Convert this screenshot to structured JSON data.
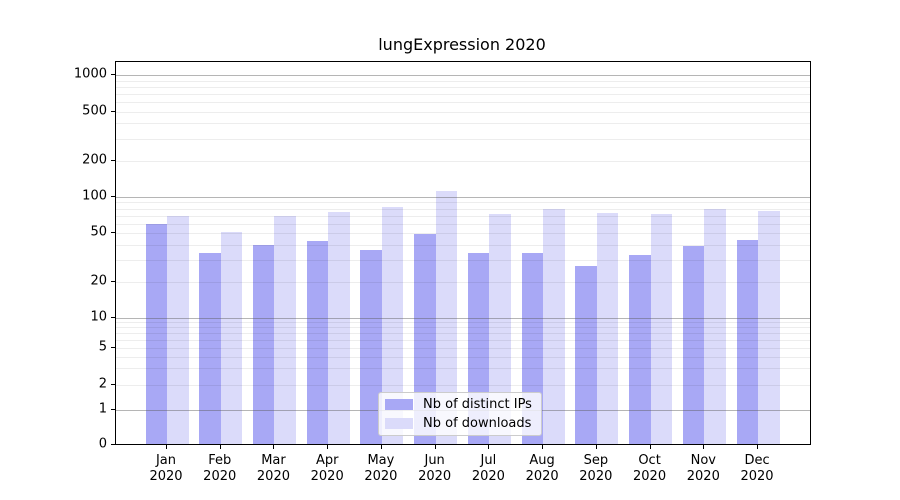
{
  "chart_data": {
    "type": "bar",
    "title": "lungExpression 2020",
    "categories": [
      "Jan",
      "Feb",
      "Mar",
      "Apr",
      "May",
      "Jun",
      "Jul",
      "Aug",
      "Sep",
      "Oct",
      "Nov",
      "Dec"
    ],
    "category_year": "2020",
    "series": [
      {
        "name": "Nb of distinct IPs",
        "color": "#a8a8f5",
        "values": [
          60,
          34,
          40,
          43,
          36,
          49,
          34,
          34,
          27,
          33,
          39,
          44
        ]
      },
      {
        "name": "Nb of downloads",
        "color": "#dbdbfa",
        "values": [
          70,
          51,
          70,
          75,
          82,
          113,
          72,
          80,
          74,
          72,
          80,
          77
        ]
      }
    ],
    "yticks": [
      "0",
      "1",
      "2",
      "5",
      "10",
      "20",
      "50",
      "100",
      "200",
      "500",
      "1000"
    ],
    "ytick_values": [
      0,
      1,
      2,
      5,
      10,
      20,
      50,
      100,
      200,
      500,
      1000
    ],
    "yscale": "symlog",
    "ylim": [
      0,
      1285
    ],
    "grid": true,
    "legend_position": "lower center"
  }
}
